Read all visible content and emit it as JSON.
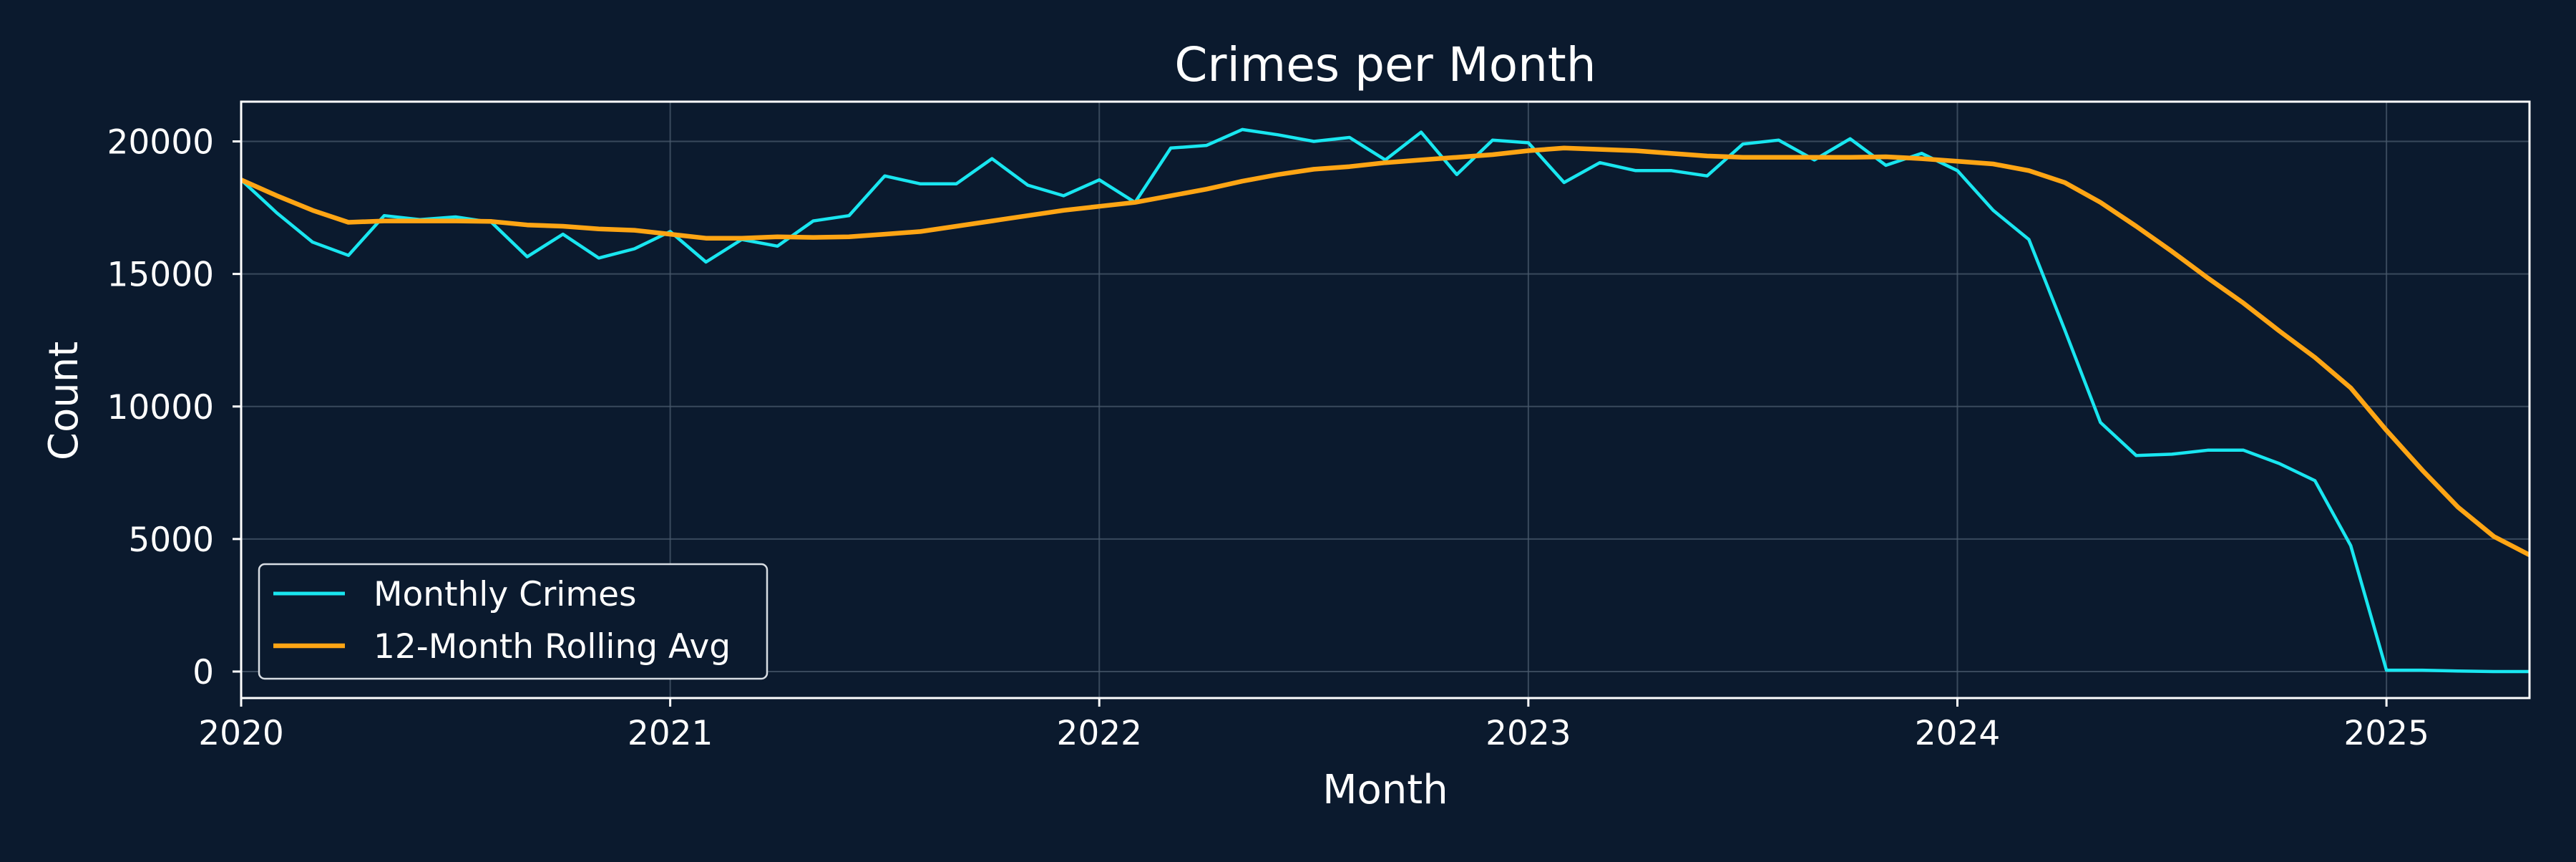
{
  "chart_data": {
    "type": "line",
    "title": "Crimes per Month",
    "xlabel": "Month",
    "ylabel": "Count",
    "x_tick_labels": [
      "2020",
      "2021",
      "2022",
      "2023",
      "2024",
      "2025"
    ],
    "y_tick_labels": [
      "0",
      "5000",
      "10000",
      "15000",
      "20000"
    ],
    "ylim": [
      -1000,
      21500
    ],
    "xlim": [
      "2020-01",
      "2025-05"
    ],
    "grid": true,
    "legend_position": "lower-left",
    "x": [
      "2020-01",
      "2020-02",
      "2020-03",
      "2020-04",
      "2020-05",
      "2020-06",
      "2020-07",
      "2020-08",
      "2020-09",
      "2020-10",
      "2020-11",
      "2020-12",
      "2021-01",
      "2021-02",
      "2021-03",
      "2021-04",
      "2021-05",
      "2021-06",
      "2021-07",
      "2021-08",
      "2021-09",
      "2021-10",
      "2021-11",
      "2021-12",
      "2022-01",
      "2022-02",
      "2022-03",
      "2022-04",
      "2022-05",
      "2022-06",
      "2022-07",
      "2022-08",
      "2022-09",
      "2022-10",
      "2022-11",
      "2022-12",
      "2023-01",
      "2023-02",
      "2023-03",
      "2023-04",
      "2023-05",
      "2023-06",
      "2023-07",
      "2023-08",
      "2023-09",
      "2023-10",
      "2023-11",
      "2023-12",
      "2024-01",
      "2024-02",
      "2024-03",
      "2024-04",
      "2024-05",
      "2024-06",
      "2024-07",
      "2024-08",
      "2024-09",
      "2024-10",
      "2024-11",
      "2024-12",
      "2025-01",
      "2025-02",
      "2025-03",
      "2025-04",
      "2025-05"
    ],
    "series": [
      {
        "name": "Monthly Crimes",
        "color": "#19e6f0",
        "values": [
          18550,
          17300,
          16200,
          15700,
          17200,
          17050,
          17150,
          16950,
          15650,
          16500,
          15600,
          15950,
          16600,
          15450,
          16300,
          16050,
          17000,
          17200,
          18700,
          18400,
          18400,
          19350,
          18350,
          17950,
          18550,
          17700,
          19750,
          19850,
          20450,
          20250,
          20000,
          20150,
          19300,
          20350,
          18750,
          20050,
          19950,
          18450,
          19200,
          18900,
          18900,
          18700,
          19900,
          20050,
          19300,
          20100,
          19100,
          19550,
          18900,
          17400,
          16300,
          12900,
          9400,
          8150,
          8200,
          8350,
          8350,
          7850,
          7200,
          4750,
          50,
          50,
          20,
          0,
          0
        ]
      },
      {
        "name": "12-Month Rolling Avg",
        "color": "#ffa514",
        "values": [
          18550,
          17950,
          17400,
          16950,
          17000,
          17000,
          17000,
          16980,
          16850,
          16800,
          16700,
          16650,
          16500,
          16350,
          16350,
          16400,
          16380,
          16400,
          16500,
          16600,
          16800,
          17000,
          17200,
          17400,
          17550,
          17700,
          17950,
          18200,
          18500,
          18750,
          18950,
          19050,
          19200,
          19300,
          19400,
          19500,
          19650,
          19750,
          19700,
          19650,
          19550,
          19450,
          19400,
          19400,
          19400,
          19400,
          19420,
          19350,
          19250,
          19150,
          18900,
          18450,
          17700,
          16800,
          15850,
          14850,
          13900,
          12850,
          11850,
          10700,
          9100,
          7600,
          6200,
          5100,
          4400
        ]
      }
    ],
    "colors": {
      "background": "#0b1a2e",
      "grid": "#4a5a6c",
      "frame": "#ffffff",
      "text": "#ffffff"
    }
  }
}
